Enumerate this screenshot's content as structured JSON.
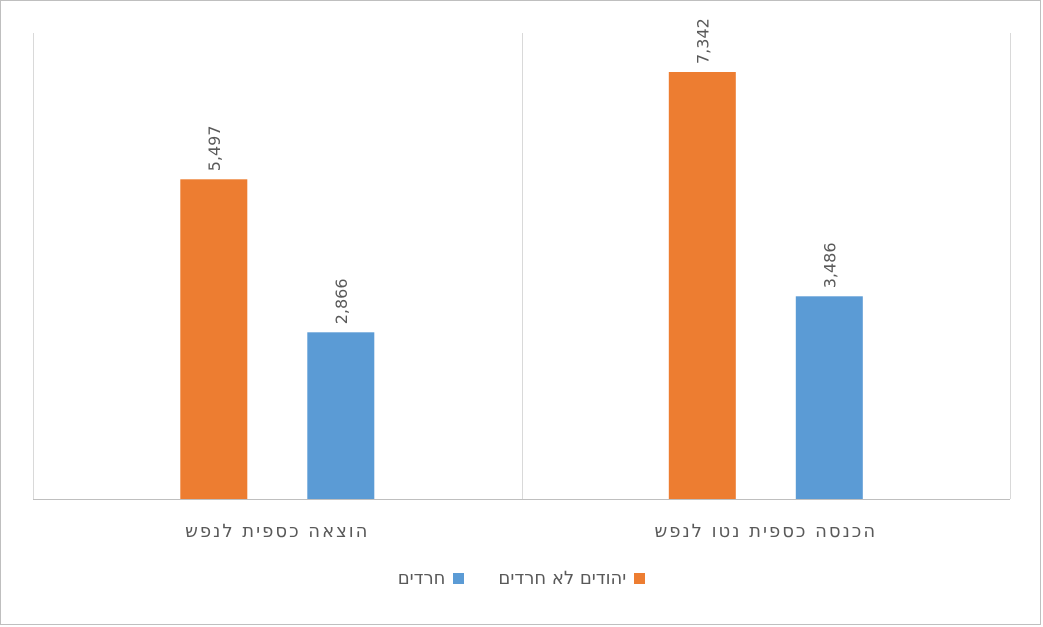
{
  "chart_data": {
    "type": "bar",
    "categories": [
      "הכנסה כספית נטו לנפש",
      "הוצאה כספית לנפש"
    ],
    "series": [
      {
        "name": "יהודים לא חרדים",
        "values": [
          7342,
          5497
        ],
        "labels": [
          "7,342",
          "5,497"
        ],
        "color": "#ED7D31"
      },
      {
        "name": "חרדים",
        "values": [
          3486,
          2866
        ],
        "labels": [
          "3,486",
          "2,866"
        ],
        "color": "#5B9BD5"
      }
    ],
    "ylim": [
      0,
      8000
    ],
    "grid": false,
    "legend": "bottom",
    "direction": "rtl"
  }
}
